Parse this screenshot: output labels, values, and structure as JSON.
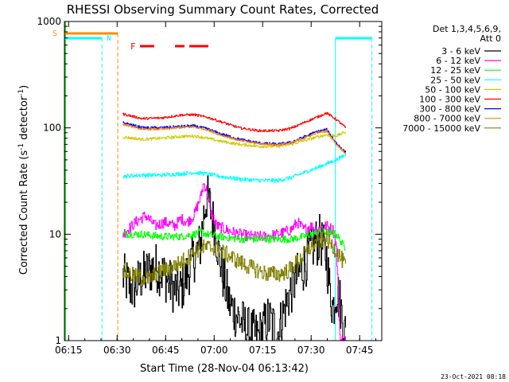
{
  "chart_data": {
    "type": "line",
    "title": "RHESSI Observing Summary Count Rates, Corrected",
    "xlabel": "Start Time (28-Nov-04 06:13:42)",
    "ylabel_prefix": "Corrected Count Rate (s",
    "ylabel_sup": "-1",
    "ylabel_mid": " detector",
    "ylabel_suffix": ")",
    "y_scale": "log",
    "ylim": [
      1,
      1000
    ],
    "xlim": [
      "06:13:42",
      "07:51:50"
    ],
    "x_ticks": [
      "06:15",
      "06:30",
      "06:45",
      "07:00",
      "07:15",
      "07:30",
      "07:45"
    ],
    "y_ticks": [
      "1",
      "10",
      "100",
      "1000"
    ],
    "legend_header": [
      "Det 1,3,4,5,6,9,",
      "Att 0"
    ],
    "legend_position": "right",
    "series": [
      {
        "name": "3 - 6 keV",
        "color": "#000000",
        "base": 3.0,
        "noise": 0.55,
        "values": [
          [
            0.0,
            4
          ],
          [
            3,
            3
          ],
          [
            6,
            4
          ],
          [
            10,
            5
          ],
          [
            13,
            4
          ],
          [
            16,
            3
          ],
          [
            18,
            3
          ],
          [
            22,
            6
          ],
          [
            24,
            8
          ],
          [
            25,
            15
          ],
          [
            26,
            23
          ],
          [
            27,
            18
          ],
          [
            29,
            9
          ],
          [
            31,
            4
          ],
          [
            33,
            2.2
          ],
          [
            36,
            1.6
          ],
          [
            39,
            1.2
          ],
          [
            42,
            1.1
          ],
          [
            45,
            1.6
          ],
          [
            48,
            1.2
          ],
          [
            51,
            2.5
          ],
          [
            53,
            3.5
          ],
          [
            56,
            5
          ],
          [
            59,
            8
          ],
          [
            61,
            9
          ],
          [
            63,
            6
          ],
          [
            64,
            3
          ],
          [
            65,
            2
          ],
          [
            66,
            3
          ],
          [
            67,
            2.5
          ],
          [
            68,
            1.5
          ],
          [
            69,
            1.1
          ]
        ]
      },
      {
        "name": "6 - 12 keV",
        "color": "#ff00ff",
        "base": 11,
        "noise": 0.12,
        "values": [
          [
            0.0,
            10
          ],
          [
            4,
            13
          ],
          [
            7,
            15
          ],
          [
            10,
            12
          ],
          [
            13,
            13
          ],
          [
            16,
            12
          ],
          [
            18,
            14
          ],
          [
            20,
            13
          ],
          [
            22,
            15
          ],
          [
            24,
            22
          ],
          [
            25,
            30
          ],
          [
            26,
            26
          ],
          [
            27,
            17
          ],
          [
            29,
            12
          ],
          [
            32,
            11
          ],
          [
            36,
            10
          ],
          [
            40,
            9.5
          ],
          [
            44,
            9.5
          ],
          [
            48,
            10
          ],
          [
            52,
            11
          ],
          [
            54,
            13
          ],
          [
            56,
            11
          ],
          [
            58,
            12
          ],
          [
            60,
            11
          ],
          [
            63,
            12
          ],
          [
            65,
            11
          ],
          [
            66,
            8
          ],
          [
            66.6,
            3
          ],
          [
            67.2,
            1.0
          ],
          [
            69,
            1.0
          ]
        ]
      },
      {
        "name": "12 - 25 keV",
        "color": "#00ff00",
        "base": 9.5,
        "noise": 0.08,
        "values": [
          [
            0.0,
            10
          ],
          [
            6,
            10
          ],
          [
            12,
            9.5
          ],
          [
            18,
            9.5
          ],
          [
            22,
            10
          ],
          [
            24,
            10.5
          ],
          [
            26,
            10
          ],
          [
            30,
            9.5
          ],
          [
            36,
            9
          ],
          [
            42,
            9
          ],
          [
            48,
            9
          ],
          [
            52,
            9
          ],
          [
            56,
            9.5
          ],
          [
            60,
            10.5
          ],
          [
            63,
            10.5
          ],
          [
            66,
            10
          ],
          [
            68,
            8
          ],
          [
            69,
            7.5
          ]
        ]
      },
      {
        "name": "25 - 50 keV",
        "color": "#00ffff",
        "base": 35,
        "noise": 0.04,
        "values": [
          [
            0.0,
            35
          ],
          [
            6,
            36
          ],
          [
            12,
            36
          ],
          [
            18,
            37
          ],
          [
            22,
            38
          ],
          [
            26,
            37
          ],
          [
            30,
            35
          ],
          [
            36,
            33
          ],
          [
            42,
            32
          ],
          [
            48,
            32
          ],
          [
            52,
            34
          ],
          [
            56,
            38
          ],
          [
            60,
            42
          ],
          [
            63,
            46
          ],
          [
            66,
            50
          ],
          [
            69,
            56
          ]
        ]
      },
      {
        "name": "50 - 100 keV",
        "color": "#cccc00",
        "base": 78,
        "noise": 0.03,
        "values": [
          [
            0.0,
            82
          ],
          [
            6,
            78
          ],
          [
            12,
            80
          ],
          [
            18,
            83
          ],
          [
            22,
            84
          ],
          [
            26,
            80
          ],
          [
            30,
            75
          ],
          [
            36,
            70
          ],
          [
            42,
            67
          ],
          [
            48,
            67
          ],
          [
            52,
            70
          ],
          [
            56,
            76
          ],
          [
            60,
            82
          ],
          [
            63,
            86
          ],
          [
            66,
            84
          ],
          [
            69,
            92
          ]
        ]
      },
      {
        "name": "100 - 300 keV",
        "color": "#ff0000",
        "base": 118,
        "noise": 0.025,
        "values": [
          [
            0.0,
            135
          ],
          [
            6,
            122
          ],
          [
            12,
            124
          ],
          [
            18,
            132
          ],
          [
            22,
            133
          ],
          [
            26,
            126
          ],
          [
            30,
            115
          ],
          [
            36,
            100
          ],
          [
            42,
            94
          ],
          [
            48,
            94
          ],
          [
            52,
            99
          ],
          [
            56,
            112
          ],
          [
            60,
            126
          ],
          [
            63,
            138
          ],
          [
            66,
            120
          ],
          [
            69,
            100
          ]
        ]
      },
      {
        "name": "300 - 800 keV",
        "color": "#0000ff",
        "base": 95,
        "noise": 0.03,
        "values": [
          [
            0.0,
            112
          ],
          [
            6,
            100
          ],
          [
            12,
            100
          ],
          [
            18,
            103
          ],
          [
            22,
            104
          ],
          [
            26,
            98
          ],
          [
            30,
            88
          ],
          [
            36,
            78
          ],
          [
            42,
            72
          ],
          [
            48,
            70
          ],
          [
            52,
            73
          ],
          [
            56,
            82
          ],
          [
            60,
            92
          ],
          [
            63,
            96
          ],
          [
            66,
            72
          ],
          [
            69,
            58
          ]
        ]
      },
      {
        "name": "800 - 7000 keV",
        "color": "#ff8800",
        "base": 92,
        "noise": 0.02,
        "values": [
          [
            0.0,
            108
          ],
          [
            6,
            97
          ],
          [
            12,
            97
          ],
          [
            18,
            101
          ],
          [
            22,
            102
          ],
          [
            26,
            96
          ],
          [
            30,
            86
          ],
          [
            36,
            76
          ],
          [
            42,
            71
          ],
          [
            48,
            69
          ],
          [
            52,
            72
          ],
          [
            56,
            80
          ],
          [
            60,
            90
          ],
          [
            63,
            93
          ],
          [
            66,
            70
          ],
          [
            69,
            57
          ]
        ]
      },
      {
        "name": "7000 - 15000 keV",
        "color": "#808000",
        "base": 5.5,
        "noise": 0.18,
        "values": [
          [
            0.0,
            4.5
          ],
          [
            4,
            4
          ],
          [
            8,
            3.8
          ],
          [
            12,
            4.5
          ],
          [
            16,
            5
          ],
          [
            20,
            6
          ],
          [
            24,
            7.5
          ],
          [
            28,
            7.5
          ],
          [
            32,
            6.5
          ],
          [
            36,
            5.5
          ],
          [
            40,
            4.8
          ],
          [
            44,
            4.3
          ],
          [
            48,
            4.2
          ],
          [
            51,
            4.5
          ],
          [
            54,
            5.5
          ],
          [
            57,
            7
          ],
          [
            60,
            8.5
          ],
          [
            63,
            9
          ],
          [
            66,
            7
          ],
          [
            69,
            5
          ]
        ]
      }
    ],
    "annotations": {
      "s_label": "S",
      "n_label": "N",
      "f_label": "F",
      "timestamp": "23-Oct-2021 08:18"
    }
  }
}
